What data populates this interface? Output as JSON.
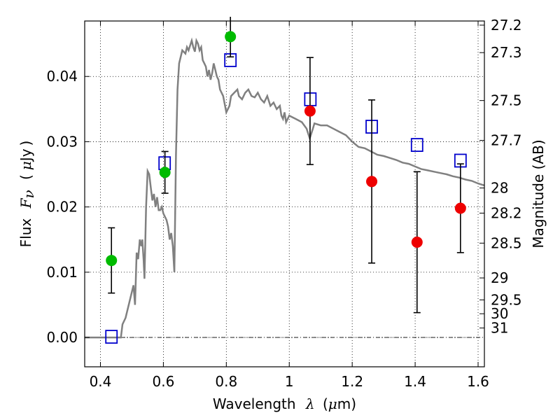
{
  "chart_data": {
    "type": "scatter",
    "title": "",
    "xlabel": {
      "prefix": "Wavelength",
      "symbol": "λ",
      "unit_open": "(",
      "unit_mu": "μ",
      "unit_rest": "m)"
    },
    "ylabel": {
      "prefix": "Flux",
      "symbol": "F",
      "sub": "ν",
      "unit_open": "(",
      "unit_mu": "μ",
      "unit_rest": "Jy",
      "unit_close": ")"
    },
    "y2label": "Magnitude (AB)",
    "xlim": [
      0.35,
      1.62
    ],
    "ylim": [
      -0.0045,
      0.0485
    ],
    "x_ticks": [
      {
        "v": 0.4,
        "label": "0.4"
      },
      {
        "v": 0.6,
        "label": "0.6"
      },
      {
        "v": 0.8,
        "label": "0.8"
      },
      {
        "v": 1.0,
        "label": "1"
      },
      {
        "v": 1.2,
        "label": "1.2"
      },
      {
        "v": 1.4,
        "label": "1.4"
      },
      {
        "v": 1.6,
        "label": "1.6"
      }
    ],
    "y_ticks": [
      {
        "v": 0.0,
        "label": "0.00"
      },
      {
        "v": 0.01,
        "label": "0.01"
      },
      {
        "v": 0.02,
        "label": "0.02"
      },
      {
        "v": 0.03,
        "label": "0.03"
      },
      {
        "v": 0.04,
        "label": "0.04"
      }
    ],
    "y2_ticks": [
      {
        "mag": 27.2,
        "label": "27.2"
      },
      {
        "mag": 27.3,
        "label": "27.3"
      },
      {
        "mag": 27.5,
        "label": "27.5"
      },
      {
        "mag": 27.7,
        "label": "27.7"
      },
      {
        "mag": 28.0,
        "label": "28"
      },
      {
        "mag": 28.2,
        "label": "28.2"
      },
      {
        "mag": 28.5,
        "label": "28.5"
      },
      {
        "mag": 29.0,
        "label": "29"
      },
      {
        "mag": 29.5,
        "label": "29.5"
      },
      {
        "mag": 30.0,
        "label": "30"
      },
      {
        "mag": 31.0,
        "label": "31"
      }
    ],
    "grid": true,
    "series": [
      {
        "kind": "line",
        "color": "#808080",
        "points": [
          [
            0.35,
            0.0
          ],
          [
            0.465,
            0.0
          ],
          [
            0.47,
            0.002
          ],
          [
            0.48,
            0.003
          ],
          [
            0.495,
            0.006
          ],
          [
            0.505,
            0.008
          ],
          [
            0.51,
            0.005
          ],
          [
            0.515,
            0.013
          ],
          [
            0.52,
            0.012
          ],
          [
            0.525,
            0.015
          ],
          [
            0.53,
            0.014
          ],
          [
            0.533,
            0.015
          ],
          [
            0.537,
            0.012
          ],
          [
            0.54,
            0.009
          ],
          [
            0.545,
            0.02
          ],
          [
            0.55,
            0.0255
          ],
          [
            0.555,
            0.025
          ],
          [
            0.56,
            0.023
          ],
          [
            0.565,
            0.021
          ],
          [
            0.57,
            0.022
          ],
          [
            0.575,
            0.02
          ],
          [
            0.58,
            0.0215
          ],
          [
            0.585,
            0.0195
          ],
          [
            0.59,
            0.0195
          ],
          [
            0.595,
            0.02
          ],
          [
            0.6,
            0.019
          ],
          [
            0.605,
            0.0185
          ],
          [
            0.61,
            0.018
          ],
          [
            0.615,
            0.017
          ],
          [
            0.62,
            0.015
          ],
          [
            0.625,
            0.016
          ],
          [
            0.63,
            0.014
          ],
          [
            0.635,
            0.01
          ],
          [
            0.64,
            0.028
          ],
          [
            0.645,
            0.038
          ],
          [
            0.65,
            0.042
          ],
          [
            0.66,
            0.044
          ],
          [
            0.67,
            0.0435
          ],
          [
            0.675,
            0.0445
          ],
          [
            0.68,
            0.044
          ],
          [
            0.69,
            0.0455
          ],
          [
            0.695,
            0.0445
          ],
          [
            0.7,
            0.0438
          ],
          [
            0.705,
            0.0455
          ],
          [
            0.71,
            0.045
          ],
          [
            0.715,
            0.044
          ],
          [
            0.72,
            0.0445
          ],
          [
            0.725,
            0.0425
          ],
          [
            0.73,
            0.042
          ],
          [
            0.735,
            0.0415
          ],
          [
            0.74,
            0.04
          ],
          [
            0.745,
            0.041
          ],
          [
            0.75,
            0.0395
          ],
          [
            0.755,
            0.0405
          ],
          [
            0.76,
            0.042
          ],
          [
            0.765,
            0.041
          ],
          [
            0.77,
            0.04
          ],
          [
            0.775,
            0.0395
          ],
          [
            0.78,
            0.038
          ],
          [
            0.79,
            0.037
          ],
          [
            0.8,
            0.0345
          ],
          [
            0.81,
            0.0355
          ],
          [
            0.815,
            0.037
          ],
          [
            0.825,
            0.0375
          ],
          [
            0.835,
            0.038
          ],
          [
            0.84,
            0.037
          ],
          [
            0.85,
            0.0365
          ],
          [
            0.86,
            0.0375
          ],
          [
            0.87,
            0.038
          ],
          [
            0.88,
            0.037
          ],
          [
            0.89,
            0.0368
          ],
          [
            0.9,
            0.0375
          ],
          [
            0.91,
            0.0365
          ],
          [
            0.92,
            0.036
          ],
          [
            0.93,
            0.037
          ],
          [
            0.94,
            0.0355
          ],
          [
            0.95,
            0.036
          ],
          [
            0.96,
            0.035
          ],
          [
            0.97,
            0.0355
          ],
          [
            0.975,
            0.034
          ],
          [
            0.98,
            0.0335
          ],
          [
            0.985,
            0.0345
          ],
          [
            0.99,
            0.033
          ],
          [
            1.0,
            0.034
          ],
          [
            1.02,
            0.0335
          ],
          [
            1.04,
            0.033
          ],
          [
            1.055,
            0.032
          ],
          [
            1.065,
            0.0305
          ],
          [
            1.075,
            0.032
          ],
          [
            1.08,
            0.0328
          ],
          [
            1.1,
            0.0325
          ],
          [
            1.12,
            0.0325
          ],
          [
            1.14,
            0.032
          ],
          [
            1.16,
            0.0315
          ],
          [
            1.18,
            0.031
          ],
          [
            1.2,
            0.03
          ],
          [
            1.22,
            0.0292
          ],
          [
            1.24,
            0.029
          ],
          [
            1.26,
            0.0285
          ],
          [
            1.28,
            0.028
          ],
          [
            1.3,
            0.0278
          ],
          [
            1.32,
            0.0275
          ],
          [
            1.34,
            0.0272
          ],
          [
            1.36,
            0.0268
          ],
          [
            1.38,
            0.0266
          ],
          [
            1.4,
            0.0262
          ],
          [
            1.42,
            0.0258
          ],
          [
            1.44,
            0.0256
          ],
          [
            1.46,
            0.0254
          ],
          [
            1.48,
            0.0252
          ],
          [
            1.5,
            0.025
          ],
          [
            1.52,
            0.0247
          ],
          [
            1.54,
            0.0245
          ],
          [
            1.56,
            0.0242
          ],
          [
            1.58,
            0.024
          ],
          [
            1.6,
            0.0236
          ],
          [
            1.62,
            0.0233
          ]
        ]
      },
      {
        "kind": "points",
        "marker": "square",
        "color": "#0000cc",
        "points": [
          [
            0.435,
            0.0001
          ],
          [
            0.604,
            0.0267
          ],
          [
            0.813,
            0.0425
          ],
          [
            1.067,
            0.0365
          ],
          [
            1.262,
            0.0323
          ],
          [
            1.406,
            0.0295
          ],
          [
            1.544,
            0.0271
          ]
        ]
      },
      {
        "kind": "points",
        "marker": "circle",
        "color": "#00bb00",
        "points": [
          {
            "x": 0.435,
            "y": 0.0118,
            "err_lo": 0.005,
            "err_hi": 0.005
          },
          {
            "x": 0.605,
            "y": 0.0253,
            "err_lo": 0.0032,
            "err_hi": 0.0032
          },
          {
            "x": 0.813,
            "y": 0.0461,
            "err_lo": 0.0031,
            "err_hi": 0.0031
          }
        ]
      },
      {
        "kind": "points",
        "marker": "circle",
        "color": "#ee0000",
        "points": [
          {
            "x": 1.066,
            "y": 0.0347,
            "err_lo": 0.0082,
            "err_hi": 0.0082
          },
          {
            "x": 1.262,
            "y": 0.0239,
            "err_lo": 0.0125,
            "err_hi": 0.0125
          },
          {
            "x": 1.406,
            "y": 0.0146,
            "err_lo": 0.0108,
            "err_hi": 0.0108
          },
          {
            "x": 1.544,
            "y": 0.0198,
            "err_lo": 0.0068,
            "err_hi": 0.0068
          }
        ]
      }
    ],
    "zero_line": true
  }
}
